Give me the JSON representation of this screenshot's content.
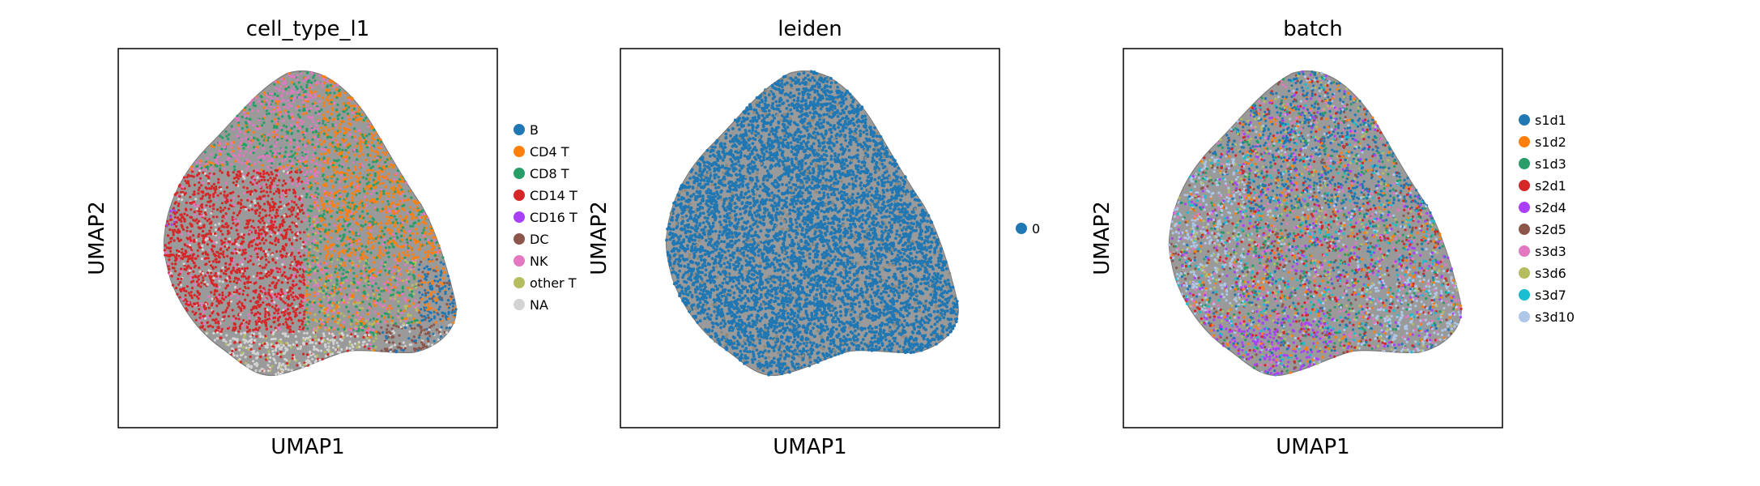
{
  "figure": {
    "background": "#ffffff"
  },
  "chart_data": [
    {
      "type": "scatter",
      "title": "cell_type_l1",
      "xlabel": "UMAP1",
      "ylabel": "UMAP2",
      "grid": false,
      "legend_placement": "right",
      "legend": [
        {
          "label": "B",
          "color": "#1f77b4"
        },
        {
          "label": "CD4 T",
          "color": "#ff7f0e"
        },
        {
          "label": "CD8 T",
          "color": "#279e68"
        },
        {
          "label": "CD14 T",
          "color": "#d62728"
        },
        {
          "label": "CD16 T",
          "color": "#aa40fc"
        },
        {
          "label": "DC",
          "color": "#8c564b"
        },
        {
          "label": "NK",
          "color": "#e377c2"
        },
        {
          "label": "other T",
          "color": "#b5bd61"
        },
        {
          "label": "NA",
          "color": "#d3d3d3"
        }
      ]
    },
    {
      "type": "scatter",
      "title": "leiden",
      "xlabel": "UMAP1",
      "ylabel": "UMAP2",
      "grid": false,
      "legend_placement": "right",
      "legend": [
        {
          "label": "0",
          "color": "#1f77b4"
        }
      ]
    },
    {
      "type": "scatter",
      "title": "batch",
      "xlabel": "UMAP1",
      "ylabel": "UMAP2",
      "grid": false,
      "legend_placement": "right",
      "legend": [
        {
          "label": "s1d1",
          "color": "#1f77b4"
        },
        {
          "label": "s1d2",
          "color": "#ff7f0e"
        },
        {
          "label": "s1d3",
          "color": "#279e68"
        },
        {
          "label": "s2d1",
          "color": "#d62728"
        },
        {
          "label": "s2d4",
          "color": "#aa40fc"
        },
        {
          "label": "s2d5",
          "color": "#8c564b"
        },
        {
          "label": "s3d3",
          "color": "#e377c2"
        },
        {
          "label": "s3d6",
          "color": "#b5bd61"
        },
        {
          "label": "s3d7",
          "color": "#17becf"
        },
        {
          "label": "s3d10",
          "color": "#aec7e8"
        }
      ]
    }
  ]
}
